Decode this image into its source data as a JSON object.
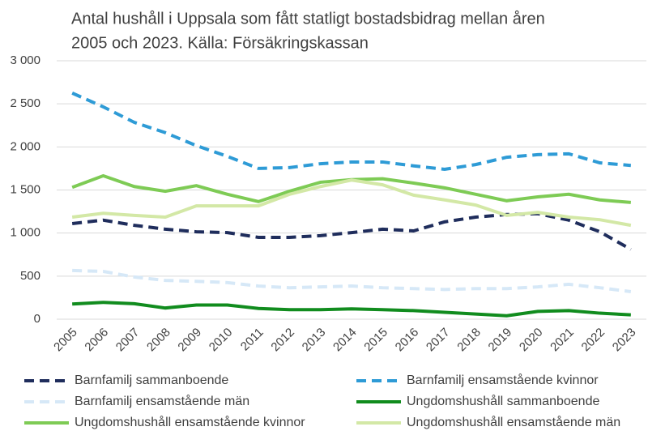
{
  "chart_data": {
    "type": "line",
    "title": [
      "Antal hushåll i Uppsala som fått statligt bostadsbidrag mellan åren",
      "2005 och 2023. Källa: Försäkringskassan"
    ],
    "categories": [
      "2005",
      "2006",
      "2007",
      "2008",
      "2009",
      "2010",
      "2011",
      "2012",
      "2013",
      "2014",
      "2015",
      "2016",
      "2017",
      "2018",
      "2019",
      "2020",
      "2021",
      "2022",
      "2023"
    ],
    "ylim": [
      0,
      3000
    ],
    "yticks": [
      0,
      500,
      {
        "value": 1000,
        "label": "1 000"
      },
      {
        "value": 1500,
        "label": "1 500"
      },
      {
        "value": 2000,
        "label": "2 000"
      },
      {
        "value": 2500,
        "label": "2 500"
      },
      {
        "value": 3000,
        "label": "3 000"
      }
    ],
    "grid": true,
    "series": [
      {
        "name": "Barnfamilj sammanboende",
        "color": "#1f2d5c",
        "dashed": true,
        "values": [
          1110,
          1150,
          1090,
          1045,
          1015,
          1005,
          950,
          950,
          970,
          1005,
          1045,
          1025,
          1130,
          1185,
          1215,
          1225,
          1150,
          1015,
          810
        ]
      },
      {
        "name": "Barnfamilj ensamstående kvinnor",
        "color": "#2e9bd6",
        "dashed": true,
        "values": [
          2625,
          2465,
          2285,
          2165,
          2015,
          1890,
          1750,
          1760,
          1805,
          1825,
          1825,
          1780,
          1740,
          1795,
          1880,
          1910,
          1920,
          1815,
          1785
        ]
      },
      {
        "name": "Barnfamilj ensamstående män",
        "color": "#d6e8f7",
        "dashed": true,
        "values": [
          565,
          555,
          490,
          450,
          440,
          425,
          385,
          365,
          375,
          385,
          365,
          355,
          345,
          355,
          355,
          375,
          405,
          365,
          320
        ]
      },
      {
        "name": "Ungdomshushåll sammanboende",
        "color": "#118c1e",
        "dashed": false,
        "values": [
          176,
          195,
          180,
          130,
          165,
          165,
          125,
          110,
          110,
          120,
          110,
          100,
          80,
          60,
          40,
          90,
          100,
          70,
          50
        ]
      },
      {
        "name": "Ungdomshushåll ensamstående kvinnor",
        "color": "#7ecb55",
        "dashed": false,
        "values": [
          1530,
          1665,
          1540,
          1485,
          1550,
          1450,
          1365,
          1485,
          1590,
          1620,
          1630,
          1580,
          1525,
          1450,
          1375,
          1420,
          1450,
          1385,
          1355
        ]
      },
      {
        "name": "Ungdomshushåll ensamstående män",
        "color": "#d3e8a6",
        "dashed": false,
        "values": [
          1185,
          1230,
          1205,
          1185,
          1315,
          1315,
          1315,
          1450,
          1540,
          1615,
          1560,
          1440,
          1385,
          1325,
          1205,
          1240,
          1185,
          1155,
          1090
        ]
      }
    ]
  }
}
